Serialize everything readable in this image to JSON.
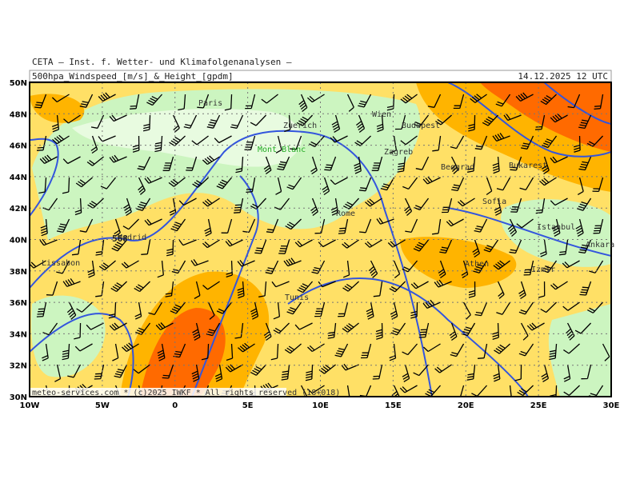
{
  "header": {
    "source": "CETA — Inst. f. Wetter- und Klimafolgenanalysen —",
    "title": "500hpa_Windspeed_[m/s]_&_Height_[gpdm]",
    "date": "14.12.2025 12 UTC"
  },
  "map": {
    "lat_ticks": [
      {
        "value": 30,
        "label": "30N"
      },
      {
        "value": 32,
        "label": "32N"
      },
      {
        "value": 34,
        "label": "34N"
      },
      {
        "value": 36,
        "label": "36N"
      },
      {
        "value": 38,
        "label": "38N"
      },
      {
        "value": 40,
        "label": "40N"
      },
      {
        "value": 42,
        "label": "42N"
      },
      {
        "value": 44,
        "label": "44N"
      },
      {
        "value": 46,
        "label": "46N"
      },
      {
        "value": 48,
        "label": "48N"
      },
      {
        "value": 50,
        "label": "50N"
      }
    ],
    "lon_ticks": [
      {
        "value": -10,
        "label": "10W"
      },
      {
        "value": -5,
        "label": "5W"
      },
      {
        "value": 0,
        "label": "0"
      },
      {
        "value": 5,
        "label": "5E"
      },
      {
        "value": 10,
        "label": "10E"
      },
      {
        "value": 15,
        "label": "15E"
      },
      {
        "value": 20,
        "label": "20E"
      },
      {
        "value": 25,
        "label": "25E"
      },
      {
        "value": 30,
        "label": "30E"
      }
    ],
    "cities": [
      "Paris",
      "Wien",
      "Zuerich",
      "Budapest",
      "Mont Blanc",
      "Zagreb",
      "Beograd",
      "Bukarest",
      "Sofia",
      "Rome",
      "Madrid",
      "Lissabon",
      "Istanbul",
      "Ankara",
      "Athen",
      "Izmir",
      "Tunis"
    ],
    "contour_label": "568"
  },
  "footer": "meteo-services.com * (c)2025 IWKF * All rights reserved (18+018)"
}
